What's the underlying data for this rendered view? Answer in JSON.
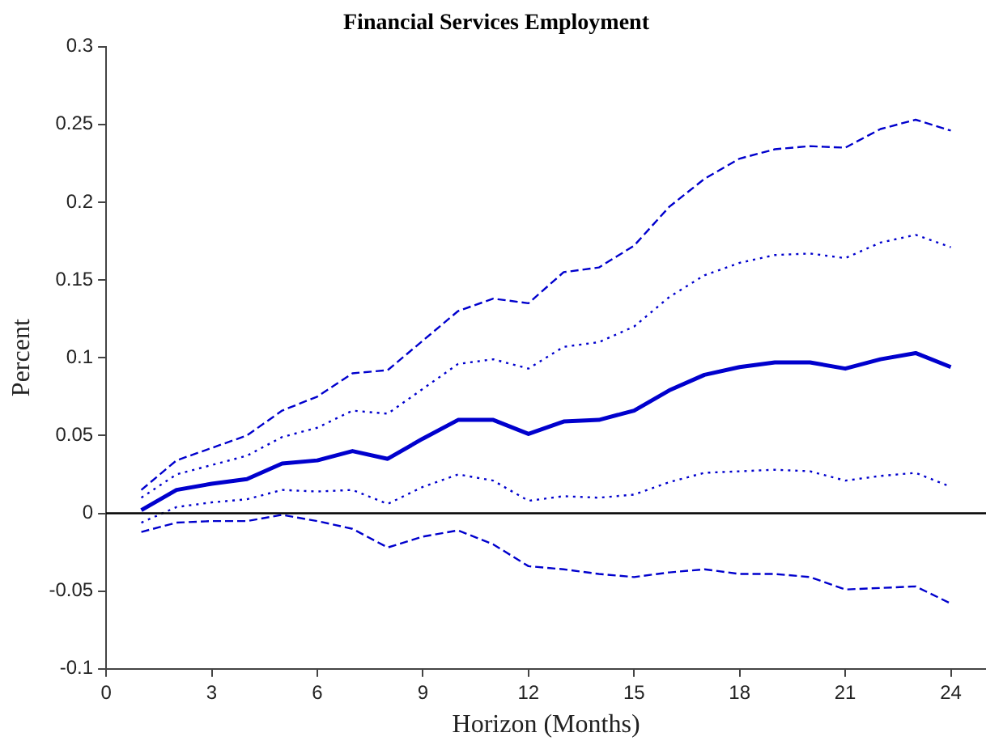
{
  "chart_data": {
    "type": "line",
    "title": "Financial Services Employment",
    "xlabel": "Horizon (Months)",
    "ylabel": "Percent",
    "x": [
      1,
      2,
      3,
      4,
      5,
      6,
      7,
      8,
      9,
      10,
      11,
      12,
      13,
      14,
      15,
      16,
      17,
      18,
      19,
      20,
      21,
      22,
      23,
      24
    ],
    "series": [
      {
        "color": "#0000cd",
        "line_style": "dashed",
        "values": [
          0.015,
          0.034,
          0.042,
          0.05,
          0.066,
          0.075,
          0.09,
          0.092,
          0.111,
          0.13,
          0.138,
          0.135,
          0.155,
          0.158,
          0.172,
          0.197,
          0.215,
          0.228,
          0.234,
          0.236,
          0.235,
          0.247,
          0.253,
          0.246
        ]
      },
      {
        "color": "#0000cd",
        "line_style": "dotted",
        "values": [
          0.01,
          0.025,
          0.031,
          0.037,
          0.049,
          0.055,
          0.066,
          0.064,
          0.08,
          0.096,
          0.099,
          0.093,
          0.107,
          0.11,
          0.12,
          0.139,
          0.153,
          0.161,
          0.166,
          0.167,
          0.164,
          0.174,
          0.179,
          0.171
        ]
      },
      {
        "color": "#0000cd",
        "line_style": "solid",
        "values": [
          0.002,
          0.015,
          0.019,
          0.022,
          0.032,
          0.034,
          0.04,
          0.035,
          0.048,
          0.06,
          0.06,
          0.051,
          0.059,
          0.06,
          0.066,
          0.079,
          0.089,
          0.094,
          0.097,
          0.097,
          0.093,
          0.099,
          0.103,
          0.094
        ]
      },
      {
        "color": "#0000cd",
        "line_style": "dotted",
        "values": [
          -0.006,
          0.004,
          0.007,
          0.009,
          0.015,
          0.014,
          0.015,
          0.006,
          0.017,
          0.025,
          0.021,
          0.008,
          0.011,
          0.01,
          0.012,
          0.02,
          0.026,
          0.027,
          0.028,
          0.027,
          0.021,
          0.024,
          0.026,
          0.017
        ]
      },
      {
        "color": "#0000cd",
        "line_style": "dashed",
        "values": [
          -0.012,
          -0.006,
          -0.005,
          -0.005,
          -0.001,
          -0.005,
          -0.01,
          -0.022,
          -0.015,
          -0.011,
          -0.02,
          -0.034,
          -0.036,
          -0.039,
          -0.041,
          -0.038,
          -0.036,
          -0.039,
          -0.039,
          -0.041,
          -0.049,
          -0.048,
          -0.047,
          -0.058
        ]
      }
    ],
    "xlim": [
      0,
      25
    ],
    "xticks": [
      0,
      3,
      6,
      9,
      12,
      15,
      18,
      21,
      24
    ],
    "ylim": [
      -0.1,
      0.3
    ],
    "yticks": [
      -0.1,
      -0.05,
      0,
      0.05,
      0.1,
      0.15,
      0.2,
      0.25,
      0.3
    ],
    "ref_lines": [
      {
        "axis": "y",
        "value": 0,
        "color": "#000000"
      }
    ],
    "grid": false,
    "legend": false,
    "marker": "none"
  }
}
